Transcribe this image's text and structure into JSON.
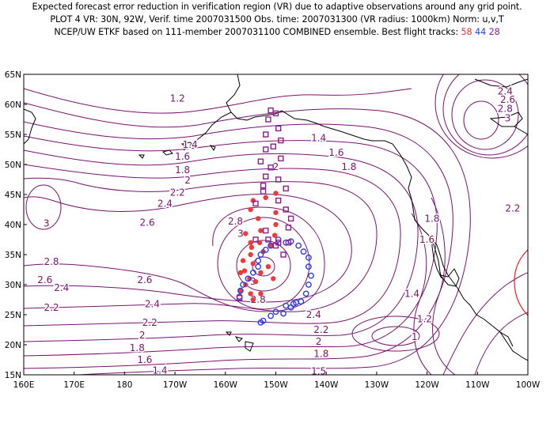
{
  "header": {
    "line1": "Expected forecast error reduction in verification region (VR) due to adaptive observations around any grid point.",
    "line2": "PLOT 4 VR: 30N, 92W, Verif. time 2007031500 Obs. time: 2007031300 (VR radius: 1000km) Norm: u,v,T",
    "line3_prefix": "NCEP/UW ETKF based on 111-member 2007031100 COMBINED ensemble.  Best flight tracks: ",
    "track_counts": [
      "58",
      "44",
      "28"
    ]
  },
  "axes": {
    "y_labels": [
      "65N",
      "60N",
      "55N",
      "50N",
      "45N",
      "40N",
      "35N",
      "30N",
      "25N",
      "20N",
      "15N"
    ],
    "x_labels": [
      "160E",
      "170E",
      "180",
      "170W",
      "160W",
      "150W",
      "140W",
      "130W",
      "120W",
      "110W",
      "100W"
    ]
  },
  "colors": {
    "contour": "#7a1270",
    "coast": "#000000",
    "track_red": "#f03a3a",
    "track_blue": "#2b3de0",
    "track_purple": "#8b1d8f",
    "vr_circle": "#e02020"
  },
  "contour_labels": [
    {
      "text": "1.2",
      "lon": 190.5,
      "lat": 61.0
    },
    {
      "text": "1.4",
      "lon": 193.0,
      "lat": 53.3
    },
    {
      "text": "1.6",
      "lon": 191.5,
      "lat": 51.3
    },
    {
      "text": "1.8",
      "lon": 191.5,
      "lat": 49.1
    },
    {
      "text": "2",
      "lon": 192.5,
      "lat": 47.4
    },
    {
      "text": "2.2",
      "lon": 190.5,
      "lat": 45.3
    },
    {
      "text": "2.4",
      "lon": 188.0,
      "lat": 43.5
    },
    {
      "text": "2.6",
      "lon": 184.5,
      "lat": 40.3
    },
    {
      "text": "2.8",
      "lon": 202.0,
      "lat": 40.5
    },
    {
      "text": "3",
      "lon": 203.0,
      "lat": 38.5
    },
    {
      "text": "3",
      "lon": 164.5,
      "lat": 40.2
    },
    {
      "text": "2.8",
      "lon": 165.5,
      "lat": 33.8
    },
    {
      "text": "2.6",
      "lon": 164.2,
      "lat": 30.8
    },
    {
      "text": "2.4",
      "lon": 167.5,
      "lat": 29.5
    },
    {
      "text": "2.2",
      "lon": 165.5,
      "lat": 26.2
    },
    {
      "text": "2.6",
      "lon": 184.0,
      "lat": 30.8
    },
    {
      "text": "2.4",
      "lon": 185.5,
      "lat": 26.8
    },
    {
      "text": "2.2",
      "lon": 185.0,
      "lat": 23.7
    },
    {
      "text": "2",
      "lon": 183.5,
      "lat": 21.6
    },
    {
      "text": "1.8",
      "lon": 182.5,
      "lat": 19.5
    },
    {
      "text": "1.6",
      "lon": 184.0,
      "lat": 17.5
    },
    {
      "text": "1.4",
      "lon": 187.0,
      "lat": 15.7
    },
    {
      "text": "2.8",
      "lon": 206.5,
      "lat": 27.5
    },
    {
      "text": "3",
      "lon": 205.5,
      "lat": 30.5
    },
    {
      "text": "2",
      "lon": 210.0,
      "lat": 49.6
    },
    {
      "text": "1.8",
      "lon": 224.5,
      "lat": 49.6
    },
    {
      "text": "1.6",
      "lon": 222.0,
      "lat": 52.0
    },
    {
      "text": "1.4",
      "lon": 218.5,
      "lat": 54.4
    },
    {
      "text": "2.4",
      "lon": 217.5,
      "lat": 25.0
    },
    {
      "text": "2.2",
      "lon": 219.0,
      "lat": 22.5
    },
    {
      "text": "2",
      "lon": 218.5,
      "lat": 20.5
    },
    {
      "text": "1.8",
      "lon": 219.0,
      "lat": 18.5
    },
    {
      "text": "1.5",
      "lon": 218.5,
      "lat": 15.6
    },
    {
      "text": "1.8",
      "lon": 241.0,
      "lat": 41.0
    },
    {
      "text": "1.6",
      "lon": 240.0,
      "lat": 37.5
    },
    {
      "text": "1.4",
      "lon": 237.0,
      "lat": 28.5
    },
    {
      "text": "1.2",
      "lon": 239.5,
      "lat": 24.3
    },
    {
      "text": "1",
      "lon": 237.5,
      "lat": 21.3
    },
    {
      "text": "2.4",
      "lon": 255.5,
      "lat": 62.2
    },
    {
      "text": "2.6",
      "lon": 256.0,
      "lat": 60.8
    },
    {
      "text": "2.8",
      "lon": 255.5,
      "lat": 59.3
    },
    {
      "text": "3",
      "lon": 256.0,
      "lat": 57.7
    },
    {
      "text": "2.2",
      "lon": 257.0,
      "lat": 42.7
    }
  ],
  "tracks": {
    "red": [
      [
        210.0,
        45.2
      ],
      [
        208.0,
        44.5
      ],
      [
        205.5,
        44.0
      ],
      [
        205.0,
        42.5
      ],
      [
        206.5,
        41.0
      ],
      [
        210.0,
        42.0
      ],
      [
        210.0,
        40.0
      ],
      [
        207.0,
        39.0
      ],
      [
        204.0,
        38.5
      ],
      [
        205.0,
        37.0
      ],
      [
        209.0,
        36.5
      ],
      [
        207.5,
        35.5
      ],
      [
        205.0,
        35.0
      ],
      [
        203.5,
        34.0
      ],
      [
        205.5,
        33.5
      ],
      [
        207.0,
        32.0
      ],
      [
        206.0,
        30.5
      ],
      [
        204.0,
        30.0
      ],
      [
        203.0,
        29.0
      ],
      [
        205.0,
        28.5
      ],
      [
        205.5,
        27.5
      ],
      [
        207.0,
        28.5
      ],
      [
        203.0,
        32.0
      ],
      [
        208.5,
        33.0
      ],
      [
        209.5,
        31.0
      ],
      [
        205.2,
        36.2
      ],
      [
        203.8,
        32.3
      ],
      [
        209.8,
        38.2
      ],
      [
        204.8,
        31.0
      ],
      [
        206.8,
        37.0
      ]
    ],
    "blue": [
      [
        213.0,
        37.2
      ],
      [
        214.5,
        36.5
      ],
      [
        215.5,
        35.5
      ],
      [
        216.5,
        34.5
      ],
      [
        216.5,
        33.0
      ],
      [
        217.0,
        31.5
      ],
      [
        216.5,
        30.0
      ],
      [
        216.0,
        28.5
      ],
      [
        215.0,
        27.2
      ],
      [
        213.5,
        26.8
      ],
      [
        212.0,
        26.5
      ],
      [
        210.0,
        25.5
      ],
      [
        209.0,
        24.8
      ],
      [
        207.5,
        24.0
      ],
      [
        207.0,
        23.7
      ],
      [
        209.0,
        36.5
      ],
      [
        208.0,
        35.8
      ],
      [
        207.0,
        35.0
      ],
      [
        206.5,
        34.0
      ],
      [
        206.5,
        33.0
      ],
      [
        205.5,
        32.0
      ],
      [
        204.5,
        31.0
      ],
      [
        203.5,
        30.0
      ],
      [
        203.0,
        29.0
      ],
      [
        202.8,
        28.0
      ],
      [
        214.0,
        27.0
      ],
      [
        213.0,
        26.2
      ],
      [
        211.5,
        25.2
      ],
      [
        210.5,
        37.5
      ],
      [
        212.0,
        37.0
      ]
    ],
    "purple": [
      [
        209.0,
        59.0
      ],
      [
        210.0,
        58.5
      ],
      [
        208.5,
        57.5
      ],
      [
        210.5,
        56.0
      ],
      [
        208.0,
        55.0
      ],
      [
        211.0,
        54.0
      ],
      [
        209.5,
        53.0
      ],
      [
        208.0,
        52.5
      ],
      [
        211.0,
        51.0
      ],
      [
        207.0,
        50.5
      ],
      [
        209.0,
        49.5
      ],
      [
        208.0,
        48.0
      ],
      [
        210.5,
        47.5
      ],
      [
        207.5,
        46.5
      ],
      [
        212.0,
        46.0
      ],
      [
        207.5,
        45.5
      ],
      [
        210.5,
        44.0
      ],
      [
        206.0,
        43.5
      ],
      [
        212.0,
        42.5
      ],
      [
        213.0,
        41.0
      ],
      [
        212.5,
        39.5
      ],
      [
        208.0,
        39.0
      ],
      [
        206.0,
        37.5
      ],
      [
        208.5,
        37.5
      ],
      [
        210.5,
        37.0
      ],
      [
        212.5,
        37.0
      ],
      [
        210.0,
        36.5
      ],
      [
        211.5,
        35.0
      ],
      [
        202.8,
        27.8
      ]
    ]
  }
}
